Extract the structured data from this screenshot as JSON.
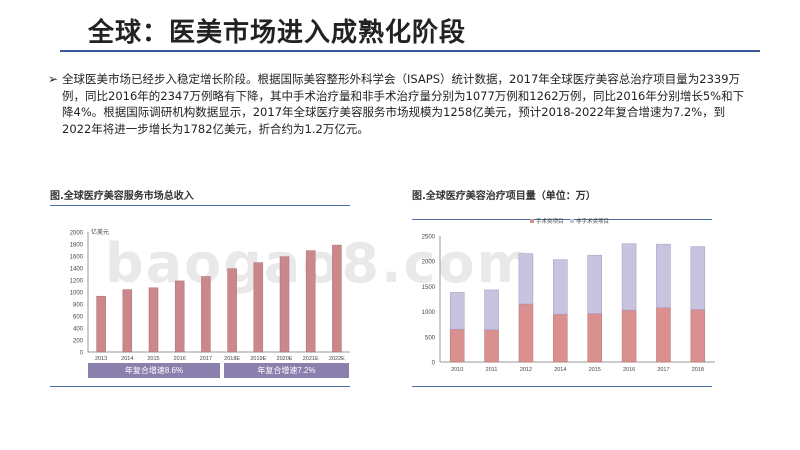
{
  "page": {
    "title": "全球：医美市场进入成熟化阶段",
    "bullet_glyph": "➢",
    "paragraph": "全球医美市场已经步入稳定增长阶段。根据国际美容整形外科学会（ISAPS）统计数据，2017年全球医疗美容总治疗项目量为2339万例，同比2016年的2347万例略有下降，其中手术治疗量和非手术治疗量分别为1077万例和1262万例，同比2016年分别增长5%和下降4%。根据国际调研机构数据显示，2017年全球医疗美容服务市场规模为1258亿美元，预计2018-2022年复合增速为7.2%，到2022年将进一步增长为1782亿美元，折合约为1.2万亿元。",
    "watermark": "baogao8.com"
  },
  "chart_data": [
    {
      "type": "bar",
      "title": "图.全球医疗美容服务市场总收入",
      "ylabel": "亿美元",
      "ylim": [
        0,
        2000
      ],
      "yticks": [
        0,
        200,
        400,
        600,
        800,
        1000,
        1200,
        1400,
        1600,
        1800,
        2000
      ],
      "categories": [
        "2013",
        "2014",
        "2015",
        "2016",
        "2017",
        "2018E",
        "2019E",
        "2020E",
        "2021E",
        "2022E"
      ],
      "values": [
        930,
        1040,
        1070,
        1185,
        1258,
        1390,
        1490,
        1590,
        1690,
        1782
      ],
      "color": "#c9888b",
      "growth_boxes": [
        "年复合增速8.6%",
        "年复合增速7.2%"
      ]
    },
    {
      "type": "bar",
      "stacked": true,
      "title": "图.全球医疗美容治疗项目量（单位：万）",
      "ylim": [
        0,
        2500
      ],
      "yticks": [
        0,
        500,
        1000,
        1500,
        2000,
        2500
      ],
      "categories": [
        "2010",
        "2011",
        "2012",
        "2014",
        "2015",
        "2016",
        "2017",
        "2018"
      ],
      "legend_position": "top",
      "series": [
        {
          "name": "手术类项目",
          "values": [
            650,
            640,
            1150,
            950,
            960,
            1030,
            1077,
            1040
          ],
          "color": "#d9908e"
        },
        {
          "name": "非手术类项目",
          "values": [
            730,
            790,
            1000,
            1080,
            1160,
            1317,
            1262,
            1250
          ],
          "color": "#c9c3df"
        }
      ]
    }
  ]
}
